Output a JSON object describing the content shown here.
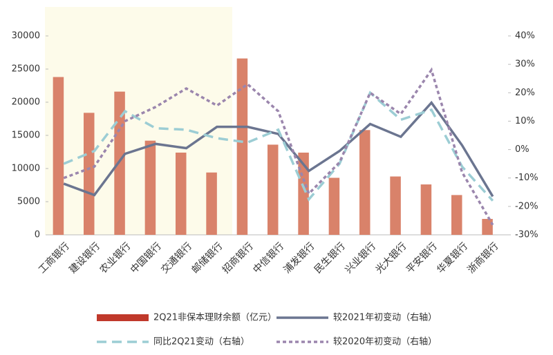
{
  "chart_data": {
    "type": "bar",
    "categories": [
      "工商银行",
      "建设银行",
      "农业银行",
      "中国银行",
      "交通银行",
      "邮储银行",
      "招商银行",
      "中信银行",
      "浦发银行",
      "民生银行",
      "兴业银行",
      "光大银行",
      "平安银行",
      "华夏银行",
      "浙商银行"
    ],
    "series": [
      {
        "name": "2Q21非保本理财余额（亿元）",
        "type": "bar",
        "color": "#d9826a",
        "values": [
          23800,
          18400,
          21600,
          14200,
          12400,
          9400,
          26600,
          13600,
          12400,
          8600,
          15800,
          8800,
          7600,
          6000,
          2400
        ]
      },
      {
        "name": "较2021年初变动（右轴）",
        "type": "line",
        "axis": "y2",
        "color": "#6b7590",
        "line_style": "solid",
        "values": [
          -12,
          -16,
          -1.5,
          2,
          0.5,
          8,
          8,
          5.5,
          -7.5,
          -0.5,
          9,
          4.5,
          16.5,
          1.5,
          -16.5
        ]
      },
      {
        "name": "同比2Q21变动（右轴）",
        "type": "line",
        "axis": "y2",
        "color": "#9ccdd4",
        "line_style": "dashed",
        "values": [
          -5,
          -0.5,
          13.5,
          7.5,
          7,
          4,
          2.5,
          7,
          -17.5,
          -5,
          20,
          10.5,
          14,
          -6,
          -18
        ]
      },
      {
        "name": "较2020年初变动（右轴）",
        "type": "line",
        "axis": "y2",
        "color": "#9b86ad",
        "line_style": "dotted",
        "values": [
          -10,
          -6,
          10,
          15,
          21.5,
          15.5,
          23,
          13.5,
          -15.5,
          -4.5,
          20,
          12.5,
          28,
          -8,
          -26.5
        ]
      }
    ],
    "ylim": [
      0,
      30000
    ],
    "yticks": [
      0,
      5000,
      10000,
      15000,
      20000,
      25000,
      30000
    ],
    "y2lim": [
      -30,
      40
    ],
    "y2ticks": [
      {
        "value": -30,
        "label": "-30%"
      },
      {
        "value": -20,
        "label": "-20%"
      },
      {
        "value": -10,
        "label": "-10%"
      },
      {
        "value": 0,
        "label": "0%"
      },
      {
        "value": 10,
        "label": "10%"
      },
      {
        "value": 20,
        "label": "20%"
      },
      {
        "value": 30,
        "label": "30%"
      },
      {
        "value": 40,
        "label": "40%"
      }
    ],
    "grid": false
  }
}
